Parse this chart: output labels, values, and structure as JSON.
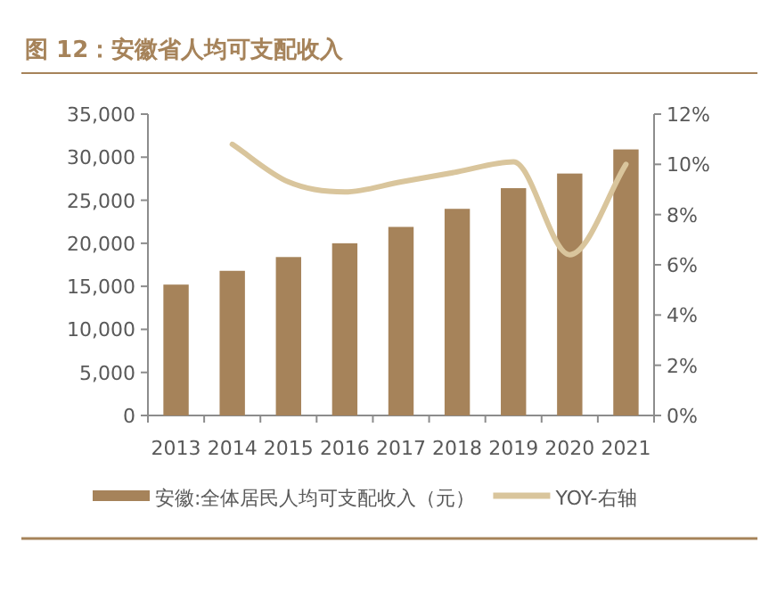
{
  "chart_data": {
    "type": "bar",
    "title": "图 12：安徽省人均可支配收入",
    "categories": [
      "2013",
      "2014",
      "2015",
      "2016",
      "2017",
      "2018",
      "2019",
      "2020",
      "2021"
    ],
    "series": [
      {
        "name": "安徽:全体居民人均可支配收入（元）",
        "color": "#a6835a",
        "values": [
          15200,
          16800,
          18400,
          20000,
          21900,
          24000,
          26400,
          28100,
          30900
        ]
      },
      {
        "name": "YOY-右轴",
        "type": "line",
        "axis": "y2",
        "color": "#d9c59c",
        "values": [
          null,
          10.8,
          9.3,
          8.9,
          9.3,
          9.7,
          10.1,
          6.4,
          10.0
        ]
      }
    ],
    "ylim": [
      0,
      35000
    ],
    "yticks": [
      {
        "value": 0,
        "label": "0"
      },
      {
        "value": 5000,
        "label": "5,000"
      },
      {
        "value": 10000,
        "label": "10,000"
      },
      {
        "value": 15000,
        "label": "15,000"
      },
      {
        "value": 20000,
        "label": "20,000"
      },
      {
        "value": 25000,
        "label": "25,000"
      },
      {
        "value": 30000,
        "label": "30,000"
      },
      {
        "value": 35000,
        "label": "35,000"
      }
    ],
    "y2lim": [
      0,
      12
    ],
    "y2ticks": [
      {
        "value": 0,
        "label": "0%"
      },
      {
        "value": 2,
        "label": "2%"
      },
      {
        "value": 4,
        "label": "4%"
      },
      {
        "value": 6,
        "label": "6%"
      },
      {
        "value": 8,
        "label": "8%"
      },
      {
        "value": 10,
        "label": "10%"
      },
      {
        "value": 12,
        "label": "12%"
      }
    ],
    "grid": false,
    "legend": "bottom"
  }
}
